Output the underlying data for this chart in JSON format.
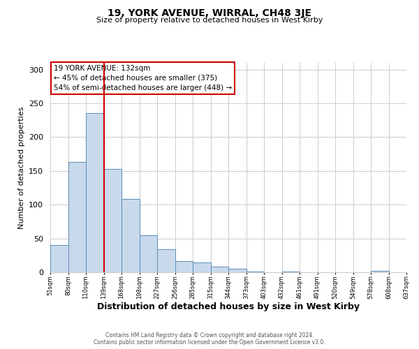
{
  "title": "19, YORK AVENUE, WIRRAL, CH48 3JE",
  "subtitle": "Size of property relative to detached houses in West Kirby",
  "xlabel": "Distribution of detached houses by size in West Kirby",
  "ylabel": "Number of detached properties",
  "bar_values": [
    40,
    163,
    236,
    153,
    109,
    55,
    34,
    17,
    14,
    8,
    5,
    1,
    0,
    1,
    0,
    0,
    0,
    0,
    2,
    0
  ],
  "bin_labels": [
    "51sqm",
    "80sqm",
    "110sqm",
    "139sqm",
    "168sqm",
    "198sqm",
    "227sqm",
    "256sqm",
    "285sqm",
    "315sqm",
    "344sqm",
    "373sqm",
    "403sqm",
    "432sqm",
    "461sqm",
    "491sqm",
    "520sqm",
    "549sqm",
    "578sqm",
    "608sqm",
    "637sqm"
  ],
  "bar_color_fill": "#c9d9ec",
  "bar_color_edge": "#5b8db8",
  "vline_x": 3,
  "vline_color": "#cc0000",
  "annotation_line1": "19 YORK AVENUE: 132sqm",
  "annotation_line2": "← 45% of detached houses are smaller (375)",
  "annotation_line3": "54% of semi-detached houses are larger (448) →",
  "annotation_box_color": "#cc0000",
  "ylim": [
    0,
    310
  ],
  "yticks": [
    0,
    50,
    100,
    150,
    200,
    250,
    300
  ],
  "footer_line1": "Contains HM Land Registry data © Crown copyright and database right 2024.",
  "footer_line2": "Contains public sector information licensed under the Open Government Licence v3.0.",
  "background_color": "#ffffff",
  "grid_color": "#cccccc",
  "title_fontsize": 10,
  "subtitle_fontsize": 8,
  "xlabel_fontsize": 9,
  "ylabel_fontsize": 8
}
